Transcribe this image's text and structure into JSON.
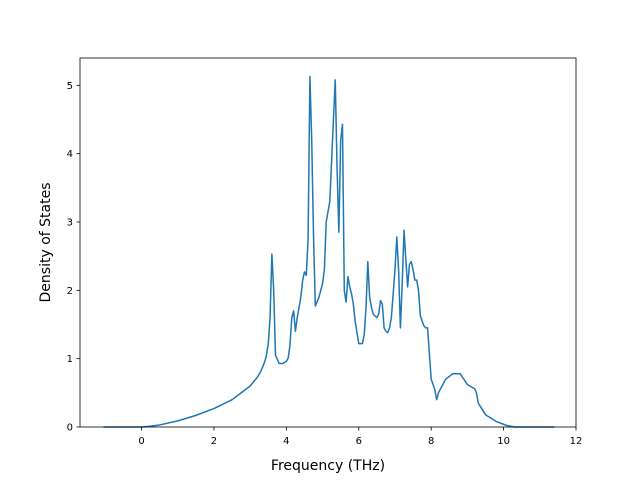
{
  "chart_data": {
    "type": "line",
    "title": "",
    "xlabel": "Frequency (THz)",
    "ylabel": "Density of States",
    "xlim": [
      -1.7,
      12
    ],
    "ylim": [
      0,
      5.4
    ],
    "xticks": [
      0,
      2,
      4,
      6,
      8,
      10,
      12
    ],
    "yticks": [
      0,
      1,
      2,
      3,
      4,
      5
    ],
    "grid": false,
    "legend": "none",
    "colors": {
      "line": "#1f77b4",
      "axes": "#000000",
      "background": "#ffffff"
    },
    "series": [
      {
        "x": [
          -1.05,
          -0.5,
          0.0,
          0.2,
          0.5,
          1.0,
          1.5,
          2.0,
          2.5,
          2.8,
          3.0,
          3.2,
          3.3,
          3.4,
          3.45,
          3.5,
          3.55,
          3.6,
          3.65,
          3.7,
          3.8,
          3.9,
          4.0,
          4.05,
          4.1,
          4.15,
          4.2,
          4.25,
          4.3,
          4.4,
          4.45,
          4.5,
          4.55,
          4.6,
          4.65,
          4.7,
          4.75,
          4.8,
          4.9,
          5.0,
          5.05,
          5.1,
          5.2,
          5.3,
          5.35,
          5.4,
          5.45,
          5.5,
          5.55,
          5.6,
          5.65,
          5.7,
          5.75,
          5.8,
          5.85,
          5.9,
          6.0,
          6.1,
          6.15,
          6.2,
          6.25,
          6.3,
          6.35,
          6.4,
          6.5,
          6.55,
          6.6,
          6.65,
          6.7,
          6.75,
          6.8,
          6.85,
          6.9,
          7.0,
          7.05,
          7.1,
          7.15,
          7.2,
          7.25,
          7.3,
          7.35,
          7.4,
          7.45,
          7.5,
          7.55,
          7.6,
          7.65,
          7.7,
          7.75,
          7.8,
          7.85,
          7.9,
          8.0,
          8.1,
          8.15,
          8.17,
          8.2,
          8.3,
          8.4,
          8.6,
          8.8,
          9.0,
          9.2,
          9.25,
          9.3,
          9.5,
          9.8,
          10.1,
          10.3,
          10.45,
          10.5,
          11.4
        ],
        "y": [
          0,
          0,
          0,
          0.01,
          0.03,
          0.09,
          0.17,
          0.27,
          0.4,
          0.52,
          0.6,
          0.73,
          0.82,
          0.95,
          1.05,
          1.22,
          1.6,
          2.53,
          2.0,
          1.05,
          0.93,
          0.93,
          0.96,
          1.01,
          1.2,
          1.6,
          1.7,
          1.4,
          1.6,
          1.9,
          2.15,
          2.27,
          2.22,
          2.75,
          5.13,
          4.2,
          2.8,
          1.77,
          1.9,
          2.1,
          2.3,
          3.0,
          3.3,
          4.5,
          5.08,
          3.8,
          2.85,
          4.2,
          4.43,
          2.0,
          1.83,
          2.2,
          2.05,
          1.95,
          1.8,
          1.55,
          1.22,
          1.22,
          1.35,
          1.75,
          2.42,
          1.9,
          1.75,
          1.65,
          1.6,
          1.65,
          1.85,
          1.8,
          1.45,
          1.4,
          1.38,
          1.45,
          1.6,
          2.3,
          2.78,
          2.3,
          1.45,
          2.1,
          2.88,
          2.45,
          2.05,
          2.38,
          2.42,
          2.3,
          2.15,
          2.15,
          2.0,
          1.63,
          1.55,
          1.48,
          1.45,
          1.45,
          0.7,
          0.55,
          0.4,
          0.43,
          0.5,
          0.6,
          0.7,
          0.78,
          0.78,
          0.62,
          0.56,
          0.5,
          0.35,
          0.18,
          0.08,
          0.02,
          0.0,
          0.0,
          0,
          0
        ]
      }
    ]
  }
}
